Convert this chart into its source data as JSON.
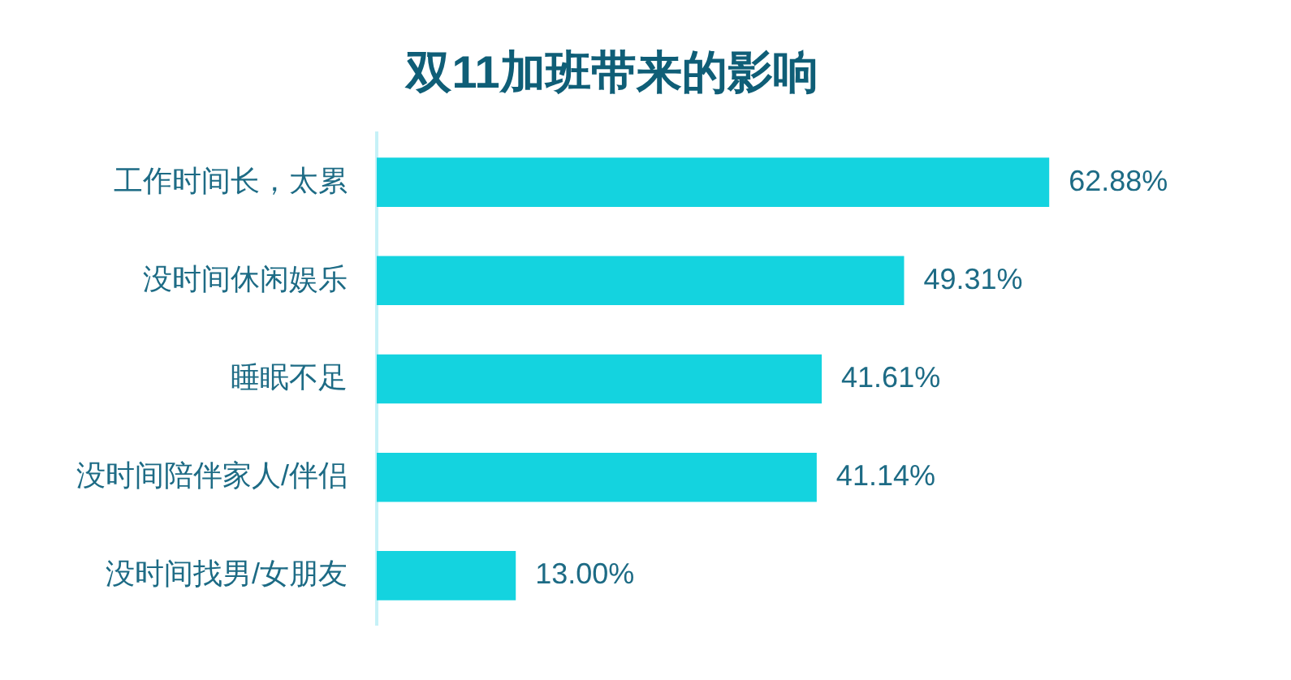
{
  "chart_data": {
    "type": "bar",
    "title": "双11加班带来的影响",
    "orientation": "horizontal",
    "categories": [
      "工作时间长，太累",
      "没时间休闲娱乐",
      "睡眠不足",
      "没时间陪伴家人/伴侣",
      "没时间找男/女朋友"
    ],
    "values": [
      62.88,
      49.31,
      41.61,
      41.14,
      13.0
    ],
    "color": "#14d3df",
    "value_labels": [
      "62.88%",
      "49.31%",
      "41.61%",
      "41.14%",
      "13.00%"
    ],
    "tick_labels": "y"
  }
}
